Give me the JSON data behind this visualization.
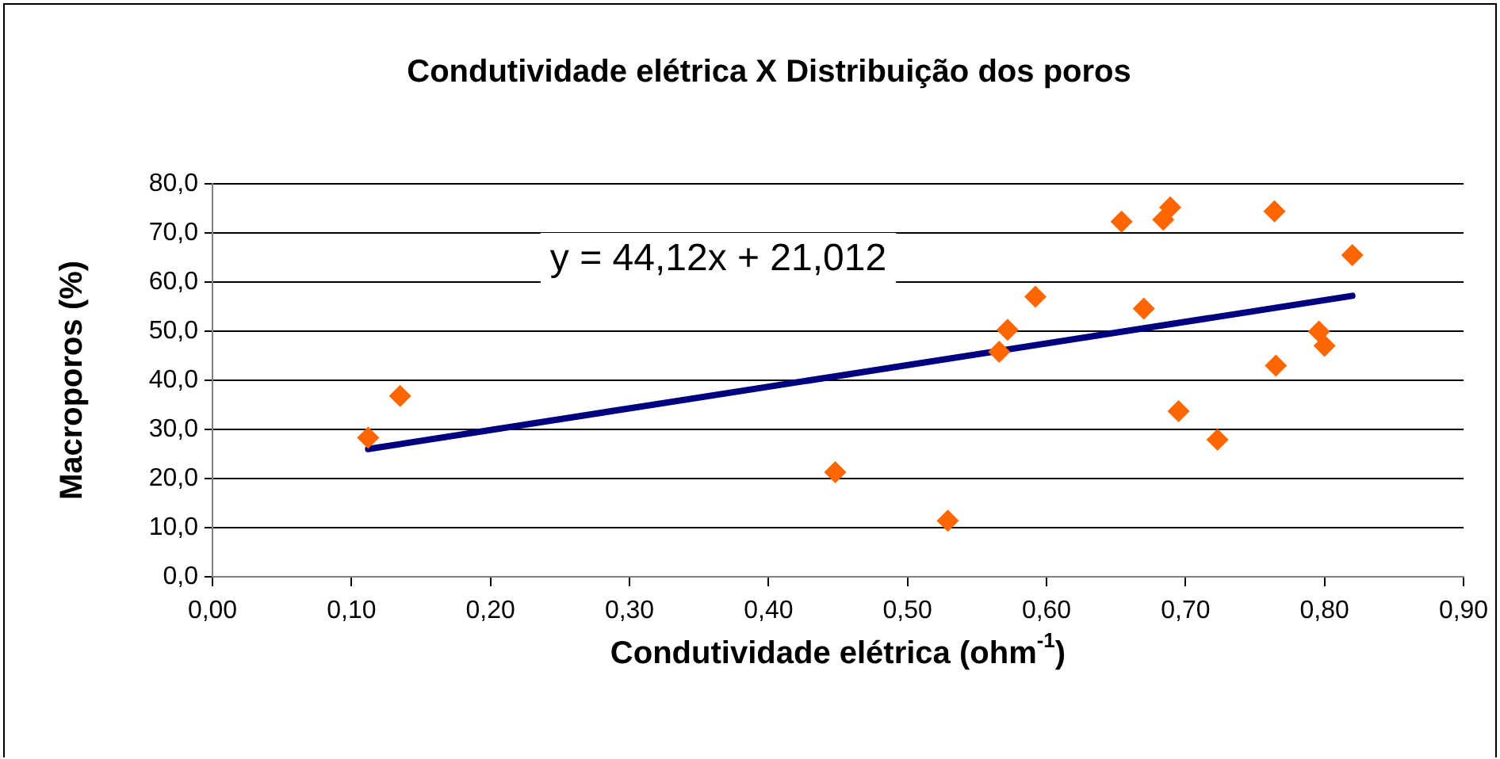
{
  "chart_data": {
    "type": "scatter",
    "title": "Condutividade elétrica X Distribuição dos poros",
    "xlabel": "Condutividade elétrica (ohm$^{-1}$)",
    "ylabel": "Macroporos (%)",
    "annotations": [
      "y = 44,12x + 21,012"
    ],
    "xlim": [
      0,
      0.9
    ],
    "xticks": [
      {
        "value": 0,
        "label": "0,00"
      },
      {
        "value": 0.1,
        "label": "0,10"
      },
      {
        "value": 0.2,
        "label": "0,20"
      },
      {
        "value": 0.3,
        "label": "0,30"
      },
      {
        "value": 0.4,
        "label": "0,40"
      },
      {
        "value": 0.5,
        "label": "0,50"
      },
      {
        "value": 0.6,
        "label": "0,60"
      },
      {
        "value": 0.7,
        "label": "0,70"
      },
      {
        "value": 0.8,
        "label": "0,80"
      },
      {
        "value": 0.9,
        "label": "0,90"
      }
    ],
    "ylim": [
      0,
      80
    ],
    "yticks": [
      {
        "value": 0,
        "label": "0,0"
      },
      {
        "value": 10,
        "label": "10,0"
      },
      {
        "value": 20,
        "label": "20,0"
      },
      {
        "value": 30,
        "label": "30,0"
      },
      {
        "value": 40,
        "label": "40,0"
      },
      {
        "value": 50,
        "label": "50,0"
      },
      {
        "value": 60,
        "label": "60,0"
      },
      {
        "value": 70,
        "label": "70,0"
      },
      {
        "value": 80,
        "label": "80,0"
      }
    ],
    "grid": "y",
    "legend": false,
    "marker": "diamond",
    "series": [
      {
        "color": "#ff6600",
        "x": [
          0.112,
          0.135,
          0.448,
          0.529,
          0.566,
          0.572,
          0.592,
          0.654,
          0.67,
          0.684,
          0.689,
          0.695,
          0.723,
          0.764,
          0.765,
          0.796,
          0.8,
          0.82
        ],
        "values": [
          28.3,
          36.8,
          21.3,
          11.4,
          45.8,
          50.3,
          57.0,
          72.3,
          54.6,
          72.7,
          75.2,
          33.7,
          27.9,
          74.4,
          43.0,
          49.9,
          47.0,
          65.5
        ]
      },
      {
        "type": "line",
        "marker": "none",
        "color": "#000080",
        "x": [
          0.112,
          0.82
        ],
        "values": [
          26.0,
          57.2
        ]
      }
    ]
  }
}
